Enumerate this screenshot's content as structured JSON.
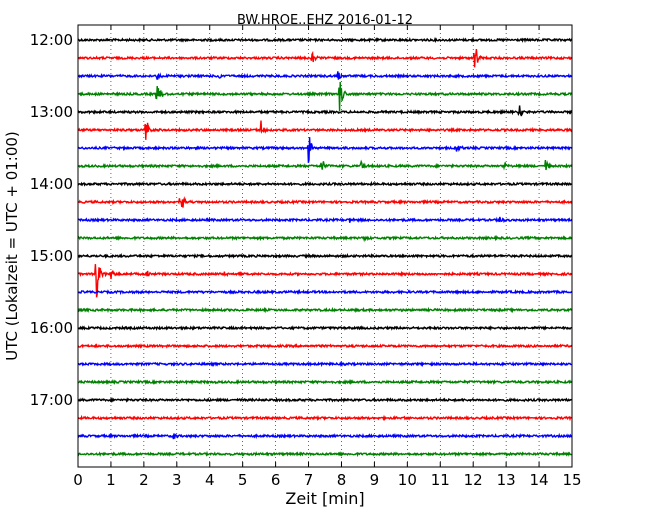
{
  "chart_data": {
    "type": "line",
    "title": "BW.HROE..EHZ 2016-01-12",
    "xlabel": "Zeit  [min]",
    "ylabel": "UTC (Lokalzeit = UTC + 01:00)",
    "xlim": [
      0,
      15
    ],
    "x_ticks": [
      0,
      1,
      2,
      3,
      4,
      5,
      6,
      7,
      8,
      9,
      10,
      11,
      12,
      13,
      14,
      15
    ],
    "x_tick_labels": [
      "0",
      "1",
      "2",
      "3",
      "4",
      "5",
      "6",
      "7",
      "8",
      "9",
      "10",
      "11",
      "12",
      "13",
      "14",
      "15"
    ],
    "hour_labels": [
      "12:00",
      "13:00",
      "14:00",
      "15:00",
      "16:00",
      "17:00"
    ],
    "grid": true,
    "trace_colors": [
      "#000000",
      "#ff0000",
      "#0000ff",
      "#008000"
    ],
    "series": [
      {
        "start": "12:00",
        "color": "#000000",
        "events": []
      },
      {
        "start": "12:15",
        "color": "#ff0000",
        "events": [
          {
            "x": 7.1,
            "amp": 7
          },
          {
            "x": 12.05,
            "amp": 16
          }
        ]
      },
      {
        "start": "12:30",
        "color": "#0000ff",
        "events": [
          {
            "x": 2.4,
            "amp": 5
          },
          {
            "x": 4.3,
            "amp": 5
          },
          {
            "x": 7.9,
            "amp": 6
          }
        ]
      },
      {
        "start": "12:45",
        "color": "#008000",
        "events": [
          {
            "x": 2.4,
            "amp": 22
          },
          {
            "x": 7.95,
            "amp": 22
          }
        ]
      },
      {
        "start": "13:00",
        "color": "#000000",
        "events": [
          {
            "x": 13.4,
            "amp": 8
          }
        ]
      },
      {
        "start": "13:15",
        "color": "#ff0000",
        "events": [
          {
            "x": 2.05,
            "amp": 18
          },
          {
            "x": 5.55,
            "amp": 13
          }
        ]
      },
      {
        "start": "13:30",
        "color": "#0000ff",
        "events": [
          {
            "x": 7.0,
            "amp": 18
          },
          {
            "x": 11.5,
            "amp": 5
          }
        ]
      },
      {
        "start": "13:45",
        "color": "#008000",
        "events": [
          {
            "x": 7.4,
            "amp": 10
          },
          {
            "x": 8.6,
            "amp": 5
          },
          {
            "x": 12.95,
            "amp": 4
          },
          {
            "x": 14.2,
            "amp": 8
          }
        ]
      },
      {
        "start": "14:00",
        "color": "#000000",
        "events": []
      },
      {
        "start": "14:15",
        "color": "#ff0000",
        "events": [
          {
            "x": 3.1,
            "amp": 22
          }
        ]
      },
      {
        "start": "14:30",
        "color": "#0000ff",
        "events": [
          {
            "x": 8.25,
            "amp": 3
          },
          {
            "x": 12.8,
            "amp": 6
          }
        ]
      },
      {
        "start": "14:45",
        "color": "#008000",
        "events": [
          {
            "x": 8.7,
            "amp": 3
          }
        ]
      },
      {
        "start": "15:00",
        "color": "#000000",
        "events": []
      },
      {
        "start": "15:15",
        "color": "#ff0000",
        "events": [
          {
            "x": 0.55,
            "amp": 36
          },
          {
            "x": 1.0,
            "amp": 7
          },
          {
            "x": 2.1,
            "amp": 5
          },
          {
            "x": 4.45,
            "amp": 3
          }
        ]
      },
      {
        "start": "15:30",
        "color": "#0000ff",
        "events": []
      },
      {
        "start": "15:45",
        "color": "#008000",
        "events": []
      },
      {
        "start": "16:00",
        "color": "#000000",
        "events": []
      },
      {
        "start": "16:15",
        "color": "#ff0000",
        "events": []
      },
      {
        "start": "16:30",
        "color": "#0000ff",
        "events": []
      },
      {
        "start": "16:45",
        "color": "#008000",
        "events": []
      },
      {
        "start": "17:00",
        "color": "#000000",
        "events": []
      },
      {
        "start": "17:15",
        "color": "#ff0000",
        "events": [
          {
            "x": 9.8,
            "amp": 2
          }
        ]
      },
      {
        "start": "17:30",
        "color": "#0000ff",
        "events": [
          {
            "x": 2.9,
            "amp": 3
          }
        ]
      },
      {
        "start": "17:45",
        "color": "#008000",
        "events": []
      }
    ]
  }
}
